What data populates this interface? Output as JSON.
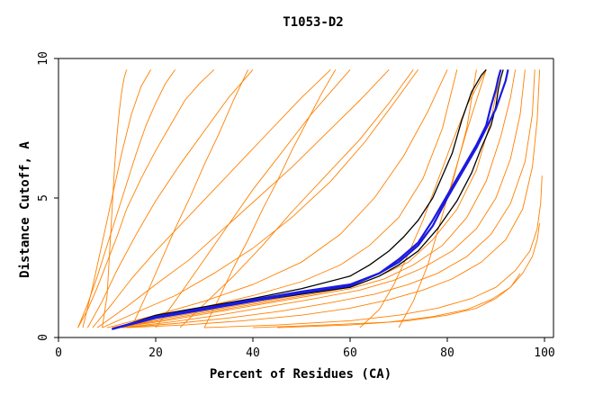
{
  "chart_data": {
    "type": "line",
    "title": "T1053-D2",
    "xlabel": "Percent of Residues (CA)",
    "ylabel": "Distance Cutoff, A",
    "xlim": [
      0,
      100
    ],
    "ylim": [
      0,
      10
    ],
    "x_ticks": [
      0,
      20,
      40,
      60,
      80,
      100
    ],
    "y_ticks": [
      0,
      5,
      10
    ],
    "x_tick_labels": [
      "0",
      "20",
      "40",
      "60",
      "80",
      "100"
    ],
    "y_tick_labels": [
      "0",
      "5",
      "10"
    ],
    "grid": false,
    "legend": "none",
    "colors": {
      "highlight_model": "#1a1adf",
      "reference_models": "#000000",
      "other_models": "#ff8000"
    },
    "series": [
      {
        "x": [
          11,
          20,
          30,
          40,
          50,
          60,
          66,
          70,
          74,
          77,
          80,
          83,
          86,
          88,
          90,
          91,
          92,
          92.5
        ],
        "y": [
          0.3,
          0.7,
          1.0,
          1.3,
          1.6,
          1.85,
          2.3,
          2.7,
          3.3,
          4.0,
          5.0,
          5.9,
          6.8,
          7.5,
          8.2,
          8.7,
          9.2,
          9.6
        ]
      },
      {
        "x": [
          11,
          20,
          30,
          40,
          50,
          60,
          66,
          70,
          74,
          77,
          80,
          83,
          86,
          88,
          89,
          90,
          90.5,
          91
        ],
        "y": [
          0.3,
          0.75,
          1.05,
          1.35,
          1.65,
          1.9,
          2.3,
          2.8,
          3.4,
          4.2,
          5.1,
          6.0,
          6.9,
          7.6,
          8.3,
          8.9,
          9.3,
          9.6
        ]
      },
      {
        "x": [
          11,
          20,
          30,
          40,
          50,
          60,
          64,
          68,
          71,
          74,
          77,
          79,
          81,
          82,
          83,
          84,
          85,
          86,
          87,
          88
        ],
        "y": [
          0.3,
          0.8,
          1.1,
          1.4,
          1.75,
          2.2,
          2.6,
          3.1,
          3.6,
          4.2,
          5.0,
          5.8,
          6.6,
          7.2,
          7.8,
          8.3,
          8.8,
          9.1,
          9.4,
          9.6
        ]
      },
      {
        "x": [
          11,
          20,
          30,
          40,
          50,
          60,
          66,
          70,
          74,
          78,
          82,
          85,
          87,
          89,
          90,
          90.5,
          91,
          91.5
        ],
        "y": [
          0.3,
          0.7,
          1.0,
          1.3,
          1.55,
          1.8,
          2.2,
          2.6,
          3.1,
          3.9,
          4.9,
          5.9,
          6.8,
          7.6,
          8.3,
          8.9,
          9.3,
          9.6
        ]
      },
      {
        "x": [
          4,
          6,
          8,
          10,
          12,
          14,
          16,
          18,
          20,
          22,
          24
        ],
        "y": [
          0.35,
          1.2,
          2.2,
          3.3,
          4.4,
          5.5,
          6.6,
          7.6,
          8.4,
          9.1,
          9.6
        ]
      },
      {
        "x": [
          4,
          6,
          8,
          10,
          12,
          14,
          17,
          20,
          23,
          26,
          29,
          32
        ],
        "y": [
          0.35,
          1.0,
          1.8,
          2.7,
          3.6,
          4.6,
          5.7,
          6.7,
          7.6,
          8.5,
          9.1,
          9.6
        ]
      },
      {
        "x": [
          5,
          7,
          9,
          11,
          13,
          15,
          17,
          19
        ],
        "y": [
          0.35,
          1.8,
          3.4,
          5.0,
          6.6,
          8.0,
          9.0,
          9.6
        ]
      },
      {
        "x": [
          9,
          10,
          10.5,
          11,
          11.5,
          12,
          12.5,
          13,
          13.5,
          14
        ],
        "y": [
          0.35,
          1.5,
          3.0,
          4.5,
          6.0,
          7.2,
          8.1,
          8.8,
          9.3,
          9.6
        ]
      },
      {
        "x": [
          6,
          9,
          12,
          16,
          20,
          25,
          30,
          35,
          40
        ],
        "y": [
          0.35,
          1.3,
          2.4,
          3.7,
          4.9,
          6.2,
          7.4,
          8.6,
          9.6
        ]
      },
      {
        "x": [
          7,
          11,
          15,
          20,
          26,
          32,
          38,
          44,
          50,
          56
        ],
        "y": [
          0.35,
          1.2,
          2.1,
          3.1,
          4.2,
          5.3,
          6.4,
          7.5,
          8.6,
          9.6
        ]
      },
      {
        "x": [
          8,
          14,
          20,
          27,
          34,
          41,
          48,
          55,
          62,
          68
        ],
        "y": [
          0.35,
          1.1,
          1.9,
          2.8,
          3.9,
          5.0,
          6.1,
          7.3,
          8.5,
          9.6
        ]
      },
      {
        "x": [
          9,
          16,
          24,
          32,
          40,
          48,
          56,
          63,
          69,
          74
        ],
        "y": [
          0.35,
          0.9,
          1.5,
          2.3,
          3.2,
          4.3,
          5.6,
          7.0,
          8.4,
          9.6
        ]
      },
      {
        "x": [
          10,
          20,
          30,
          40,
          50,
          58,
          65,
          71,
          76,
          80
        ],
        "y": [
          0.35,
          0.8,
          1.3,
          1.9,
          2.7,
          3.7,
          5.0,
          6.5,
          8.1,
          9.6
        ]
      },
      {
        "x": [
          11,
          20,
          30,
          40,
          50,
          58,
          64,
          70,
          75,
          79,
          82
        ],
        "y": [
          0.35,
          0.7,
          1.1,
          1.5,
          2.0,
          2.6,
          3.3,
          4.3,
          5.7,
          7.5,
          9.6
        ]
      },
      {
        "x": [
          12,
          22,
          32,
          42,
          52,
          60,
          66,
          72,
          77,
          81,
          84,
          86
        ],
        "y": [
          0.35,
          0.7,
          1.0,
          1.3,
          1.6,
          1.9,
          2.3,
          3.0,
          4.0,
          5.5,
          7.5,
          9.6
        ]
      },
      {
        "x": [
          12,
          22,
          32,
          42,
          52,
          60,
          66,
          72,
          77,
          82,
          86,
          89,
          91
        ],
        "y": [
          0.35,
          0.65,
          0.95,
          1.25,
          1.55,
          1.8,
          2.2,
          2.7,
          3.5,
          4.6,
          6.0,
          7.8,
          9.6
        ]
      },
      {
        "x": [
          12,
          22,
          32,
          42,
          52,
          60,
          67,
          73,
          79,
          84,
          88,
          91,
          93,
          94
        ],
        "y": [
          0.35,
          0.6,
          0.9,
          1.2,
          1.5,
          1.75,
          2.1,
          2.6,
          3.3,
          4.3,
          5.6,
          7.2,
          8.6,
          9.6
        ]
      },
      {
        "x": [
          13,
          23,
          33,
          43,
          53,
          62,
          69,
          75,
          81,
          86,
          90,
          93,
          95,
          96
        ],
        "y": [
          0.35,
          0.55,
          0.8,
          1.1,
          1.4,
          1.7,
          2.05,
          2.5,
          3.1,
          3.9,
          5.0,
          6.4,
          8.0,
          9.6
        ]
      },
      {
        "x": [
          13,
          24,
          35,
          46,
          56,
          65,
          72,
          78,
          84,
          89,
          93,
          96,
          97.5,
          98
        ],
        "y": [
          0.35,
          0.5,
          0.7,
          0.95,
          1.25,
          1.55,
          1.9,
          2.3,
          2.9,
          3.7,
          4.8,
          6.3,
          8.0,
          9.6
        ]
      },
      {
        "x": [
          14,
          26,
          38,
          50,
          60,
          68,
          75,
          81,
          87,
          92,
          95.5,
          97.5,
          98.5,
          99
        ],
        "y": [
          0.35,
          0.45,
          0.6,
          0.8,
          1.05,
          1.35,
          1.7,
          2.1,
          2.7,
          3.5,
          4.6,
          6.1,
          7.8,
          9.6
        ]
      },
      {
        "x": [
          30,
          45,
          60,
          70,
          78,
          85,
          90,
          94,
          97,
          98.5,
          99.2,
          99.5
        ],
        "y": [
          0.35,
          0.45,
          0.6,
          0.8,
          1.05,
          1.4,
          1.8,
          2.4,
          3.1,
          3.9,
          4.8,
          5.8
        ]
      },
      {
        "x": [
          40,
          55,
          68,
          77,
          84,
          89,
          93,
          95.5,
          97.5,
          98.5,
          99
        ],
        "y": [
          0.35,
          0.45,
          0.55,
          0.75,
          1.0,
          1.35,
          1.8,
          2.3,
          2.9,
          3.5,
          4.1
        ]
      },
      {
        "x": [
          45,
          60,
          72,
          80,
          86,
          90,
          93,
          95
        ],
        "y": [
          0.35,
          0.45,
          0.6,
          0.8,
          1.05,
          1.4,
          1.8,
          2.3
        ]
      },
      {
        "x": [
          62,
          66,
          69,
          72,
          75,
          78,
          81,
          84,
          88
        ],
        "y": [
          0.35,
          1.0,
          1.9,
          3.0,
          4.2,
          5.6,
          7.0,
          8.3,
          9.6
        ]
      },
      {
        "x": [
          70,
          73,
          76,
          78,
          80,
          82,
          84,
          86,
          88
        ],
        "y": [
          0.35,
          1.3,
          2.6,
          3.8,
          5.0,
          6.2,
          7.4,
          8.5,
          9.6
        ]
      },
      {
        "x": [
          20,
          24,
          28,
          32,
          36,
          40,
          44,
          48,
          52,
          56,
          60
        ],
        "y": [
          0.35,
          1.3,
          2.3,
          3.3,
          4.3,
          5.3,
          6.2,
          7.1,
          8.0,
          8.8,
          9.6
        ]
      },
      {
        "x": [
          15,
          18,
          21,
          24,
          27,
          30,
          33,
          36,
          39
        ],
        "y": [
          0.35,
          1.5,
          2.7,
          3.9,
          5.0,
          6.2,
          7.3,
          8.5,
          9.6
        ]
      },
      {
        "x": [
          30,
          33,
          36,
          39,
          42,
          45,
          48,
          51,
          54,
          57
        ],
        "y": [
          0.35,
          1.4,
          2.5,
          3.5,
          4.6,
          5.6,
          6.7,
          7.7,
          8.7,
          9.6
        ]
      },
      {
        "x": [
          25,
          30,
          36,
          42,
          48,
          55,
          62,
          68,
          73
        ],
        "y": [
          0.35,
          1.2,
          2.2,
          3.3,
          4.5,
          5.8,
          7.1,
          8.4,
          9.6
        ]
      }
    ]
  }
}
